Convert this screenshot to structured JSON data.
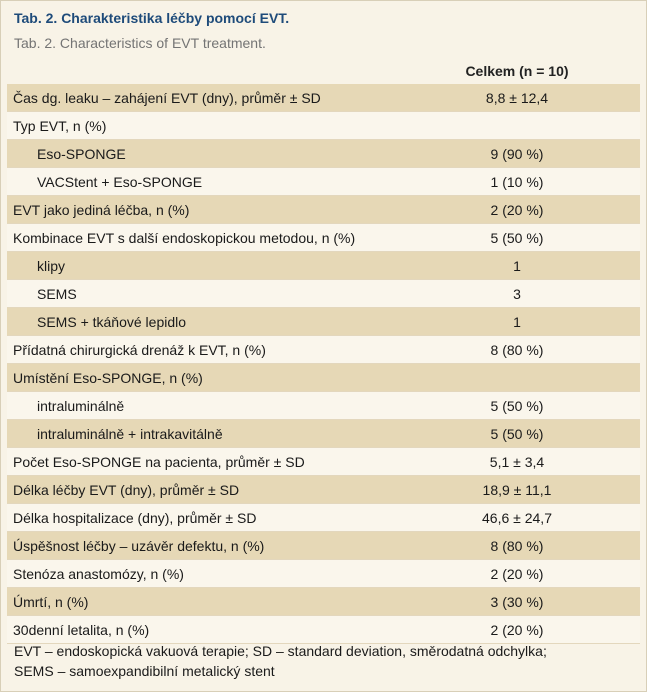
{
  "title": "Tab. 2. Charakteristika léčby pomocí EVT.",
  "subtitle": "Tab. 2. Characteristics of EVT treatment.",
  "column_header": "Celkem (n = 10)",
  "rows": [
    {
      "label": "Čas dg. leaku – zahájení EVT (dny), průměr ± SD",
      "value": "8,8 ± 12,4",
      "indent": false,
      "shaded": true
    },
    {
      "label": "Typ EVT, n (%)",
      "value": "",
      "indent": false,
      "shaded": false
    },
    {
      "label": "Eso-SPONGE",
      "value": "9 (90 %)",
      "indent": true,
      "shaded": true
    },
    {
      "label": "VACStent + Eso-SPONGE",
      "value": "1 (10 %)",
      "indent": true,
      "shaded": false
    },
    {
      "label": "EVT jako jediná léčba, n (%)",
      "value": "2 (20 %)",
      "indent": false,
      "shaded": true
    },
    {
      "label": "Kombinace EVT s další endoskopickou metodou, n (%)",
      "value": "5 (50 %)",
      "indent": false,
      "shaded": false
    },
    {
      "label": "klipy",
      "value": "1",
      "indent": true,
      "shaded": true
    },
    {
      "label": "SEMS",
      "value": "3",
      "indent": true,
      "shaded": false
    },
    {
      "label": "SEMS + tkáňové lepidlo",
      "value": "1",
      "indent": true,
      "shaded": true
    },
    {
      "label": "Přídatná chirurgická drenáž k EVT, n (%)",
      "value": "8 (80 %)",
      "indent": false,
      "shaded": false
    },
    {
      "label": "Umístění Eso-SPONGE, n (%)",
      "value": "",
      "indent": false,
      "shaded": true
    },
    {
      "label": "intraluminálně",
      "value": "5 (50 %)",
      "indent": true,
      "shaded": false
    },
    {
      "label": "intraluminálně + intrakavitálně",
      "value": "5 (50 %)",
      "indent": true,
      "shaded": true
    },
    {
      "label": "Počet Eso-SPONGE na pacienta, průměr ± SD",
      "value": "5,1 ± 3,4",
      "indent": false,
      "shaded": false
    },
    {
      "label": "Délka léčby EVT (dny), průměr ± SD",
      "value": "18,9 ± 11,1",
      "indent": false,
      "shaded": true
    },
    {
      "label": "Délka hospitalizace (dny), průměr ± SD",
      "value": "46,6 ± 24,7",
      "indent": false,
      "shaded": false
    },
    {
      "label": "Úspěšnost léčby – uzávěr defektu, n (%)",
      "value": "8 (80 %)",
      "indent": false,
      "shaded": true
    },
    {
      "label": "Stenóza anastomózy, n (%)",
      "value": "2 (20 %)",
      "indent": false,
      "shaded": false
    },
    {
      "label": "Úmrtí, n (%)",
      "value": "3 (30 %)",
      "indent": false,
      "shaded": true
    },
    {
      "label": "30denní letalita, n (%)",
      "value": "2 (20 %)",
      "indent": false,
      "shaded": false
    }
  ],
  "footnote_lines": [
    "EVT – endoskopická vakuová terapie; SD – standard deviation, směrodatná odchylka;",
    "SEMS – samoexpandibilní metalický stent"
  ]
}
